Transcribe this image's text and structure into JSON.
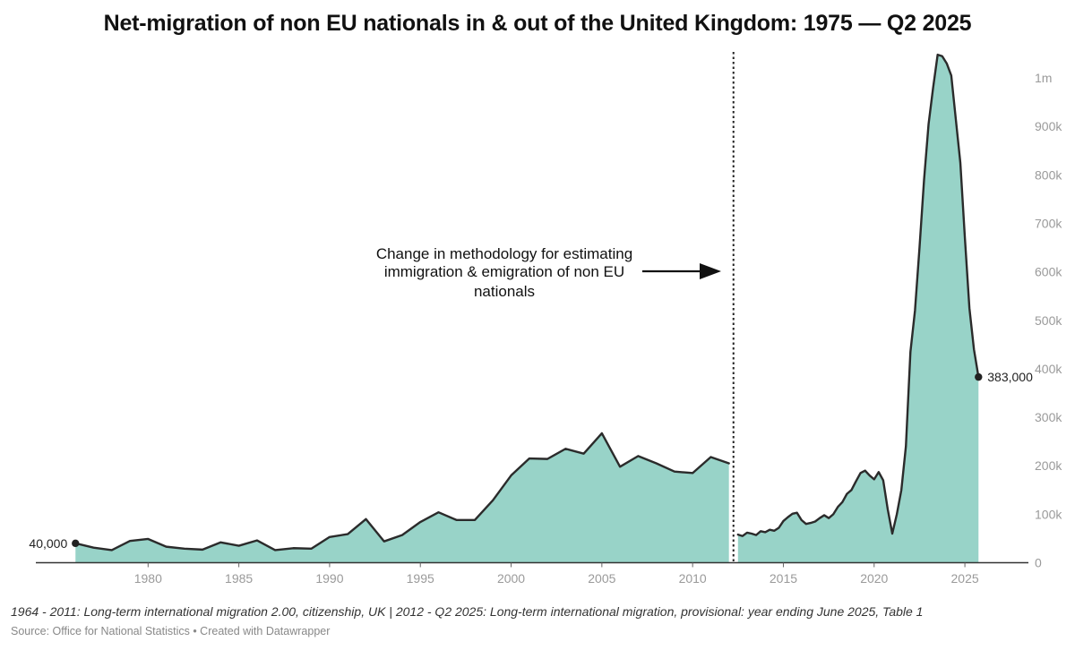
{
  "chart_data": {
    "type": "area",
    "title": "Net-migration of non EU nationals in & out of the United Kingdom: 1975 — Q2 2025",
    "xlabel": "",
    "ylabel": "",
    "xlim": [
      1975,
      2028.5
    ],
    "ylim": [
      0,
      1050000
    ],
    "x_ticks": [
      {
        "value": 1980,
        "label": "1980"
      },
      {
        "value": 1985,
        "label": "1985"
      },
      {
        "value": 1990,
        "label": "1990"
      },
      {
        "value": 1995,
        "label": "1995"
      },
      {
        "value": 2000,
        "label": "2000"
      },
      {
        "value": 2005,
        "label": "2005"
      },
      {
        "value": 2010,
        "label": "2010"
      },
      {
        "value": 2015,
        "label": "2015"
      },
      {
        "value": 2020,
        "label": "2020"
      },
      {
        "value": 2025,
        "label": "2025"
      }
    ],
    "y_ticks": [
      {
        "value": 0,
        "label": "0"
      },
      {
        "value": 100000,
        "label": "100k"
      },
      {
        "value": 200000,
        "label": "200k"
      },
      {
        "value": 300000,
        "label": "300k"
      },
      {
        "value": 400000,
        "label": "400k"
      },
      {
        "value": 500000,
        "label": "500k"
      },
      {
        "value": 600000,
        "label": "600k"
      },
      {
        "value": 700000,
        "label": "700k"
      },
      {
        "value": 800000,
        "label": "800k"
      },
      {
        "value": 900000,
        "label": "900k"
      },
      {
        "value": 1000000,
        "label": "1m"
      }
    ],
    "series": [
      {
        "name": "1964 - 2011 series",
        "points": [
          [
            1976,
            40000
          ],
          [
            1977,
            31000
          ],
          [
            1978,
            26000
          ],
          [
            1979,
            45000
          ],
          [
            1980,
            49000
          ],
          [
            1981,
            33000
          ],
          [
            1982,
            29000
          ],
          [
            1983,
            27000
          ],
          [
            1984,
            42000
          ],
          [
            1985,
            35000
          ],
          [
            1986,
            46000
          ],
          [
            1987,
            26000
          ],
          [
            1988,
            30000
          ],
          [
            1989,
            29000
          ],
          [
            1990,
            53000
          ],
          [
            1991,
            59000
          ],
          [
            1992,
            90000
          ],
          [
            1993,
            44000
          ],
          [
            1994,
            57000
          ],
          [
            1995,
            84000
          ],
          [
            1996,
            104000
          ],
          [
            1997,
            88000
          ],
          [
            1998,
            88000
          ],
          [
            1999,
            129000
          ],
          [
            2000,
            180000
          ],
          [
            2001,
            215000
          ],
          [
            2002,
            214000
          ],
          [
            2003,
            235000
          ],
          [
            2004,
            225000
          ],
          [
            2005,
            267000
          ],
          [
            2006,
            198000
          ],
          [
            2007,
            220000
          ],
          [
            2008,
            205000
          ],
          [
            2009,
            188000
          ],
          [
            2010,
            185000
          ],
          [
            2011,
            218000
          ],
          [
            2012,
            205000
          ]
        ]
      },
      {
        "name": "2012 - Q2 2025 series",
        "points": [
          [
            2012.5,
            58000
          ],
          [
            2012.75,
            55000
          ],
          [
            2013,
            62000
          ],
          [
            2013.25,
            60000
          ],
          [
            2013.5,
            57000
          ],
          [
            2013.75,
            65000
          ],
          [
            2014,
            63000
          ],
          [
            2014.25,
            68000
          ],
          [
            2014.5,
            66000
          ],
          [
            2014.75,
            72000
          ],
          [
            2015,
            86000
          ],
          [
            2015.25,
            94000
          ],
          [
            2015.5,
            101000
          ],
          [
            2015.75,
            103000
          ],
          [
            2016,
            88000
          ],
          [
            2016.25,
            80000
          ],
          [
            2016.5,
            82000
          ],
          [
            2016.75,
            85000
          ],
          [
            2017,
            92000
          ],
          [
            2017.25,
            98000
          ],
          [
            2017.5,
            92000
          ],
          [
            2017.75,
            100000
          ],
          [
            2018,
            115000
          ],
          [
            2018.25,
            125000
          ],
          [
            2018.5,
            142000
          ],
          [
            2018.75,
            150000
          ],
          [
            2019,
            168000
          ],
          [
            2019.25,
            185000
          ],
          [
            2019.5,
            190000
          ],
          [
            2019.75,
            180000
          ],
          [
            2020,
            172000
          ],
          [
            2020.25,
            187000
          ],
          [
            2020.5,
            170000
          ],
          [
            2020.75,
            110000
          ],
          [
            2021,
            60000
          ],
          [
            2021.25,
            100000
          ],
          [
            2021.5,
            150000
          ],
          [
            2021.75,
            240000
          ],
          [
            2022,
            435000
          ],
          [
            2022.25,
            520000
          ],
          [
            2022.5,
            650000
          ],
          [
            2022.75,
            790000
          ],
          [
            2023,
            905000
          ],
          [
            2023.25,
            980000
          ],
          [
            2023.5,
            1048000
          ],
          [
            2023.75,
            1045000
          ],
          [
            2024,
            1030000
          ],
          [
            2024.25,
            1005000
          ],
          [
            2024.5,
            915000
          ],
          [
            2024.75,
            825000
          ],
          [
            2025,
            670000
          ],
          [
            2025.25,
            525000
          ],
          [
            2025.5,
            440000
          ],
          [
            2025.75,
            383000
          ]
        ]
      }
    ],
    "point_labels": [
      {
        "x": 1976,
        "y": 40000,
        "label": "40,000",
        "side": "left"
      },
      {
        "x": 2025.75,
        "y": 383000,
        "label": "383,000",
        "side": "right"
      }
    ],
    "divider": {
      "x": 2012.25,
      "style": "dotted"
    },
    "annotation": {
      "lines": [
        "Change in methodology for estimating",
        "immigration & emigration of non EU",
        "nationals"
      ],
      "arrow": "points right to the dotted divider"
    },
    "colors": {
      "area_fill": "#98d3c8",
      "line": "#2b2b2b",
      "axis": "#333333",
      "tick_text": "#9a9a9a"
    },
    "grid": false,
    "legend": "none"
  },
  "footnote": "1964 - 2011: Long-term international migration 2.00, citizenship, UK | 2012 - Q2 2025: Long-term international migration, provisional: year ending June 2025, Table 1",
  "source": "Source: Office for National Statistics • Created with Datawrapper"
}
